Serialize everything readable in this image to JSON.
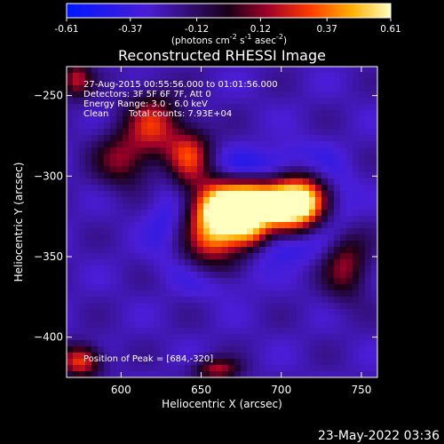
{
  "chart_data": {
    "type": "heatmap",
    "title": "Reconstructed RHESSI Image",
    "xlabel": "Heliocentric X (arcsec)",
    "ylabel": "Heliocentric Y (arcsec)",
    "xlim": [
      566,
      760
    ],
    "ylim": [
      -425,
      -232
    ],
    "xticks": [
      600,
      650,
      700,
      750
    ],
    "yticks": [
      -250,
      -300,
      -350,
      -400
    ],
    "colorbar": {
      "ticks": [
        "-0.61",
        "-0.37",
        "-0.12",
        "0.12",
        "0.37",
        "0.61"
      ],
      "min": -0.61,
      "max": 0.61,
      "label_main": "(photons cm",
      "label_exp1": "-2",
      "label_mid": " s",
      "label_exp2": "-1",
      "label_end": " asec",
      "label_exp3": "-2",
      "label_close": ")"
    },
    "annotations": {
      "time_range": "27-Aug-2015 00:55:56.000 to 01:01:56.000",
      "detectors": "Detectors: 3F 5F 6F 7F, Att 0",
      "energy": "Energy Range: 3.0 - 6.0 keV",
      "clean": "Clean",
      "counts": "Total counts: 7.93E+04",
      "peak": "Position of Peak = [684,-320]"
    },
    "sources": [
      {
        "x": 681,
        "y": -319,
        "peak": 0.61,
        "sx": 16,
        "sy": 10
      },
      {
        "x": 662,
        "y": -318,
        "peak": 0.48,
        "sx": 14,
        "sy": 11
      },
      {
        "x": 700,
        "y": -317,
        "peak": 0.5,
        "sx": 12,
        "sy": 11
      },
      {
        "x": 716,
        "y": -316,
        "peak": 0.4,
        "sx": 10,
        "sy": 12
      },
      {
        "x": 643,
        "y": -290,
        "peak": 0.3,
        "sx": 10,
        "sy": 13
      },
      {
        "x": 658,
        "y": -340,
        "peak": 0.4,
        "sx": 13,
        "sy": 11
      },
      {
        "x": 681,
        "y": -338,
        "peak": 0.25,
        "sx": 10,
        "sy": 8
      },
      {
        "x": 620,
        "y": -268,
        "peak": 0.22,
        "sx": 12,
        "sy": 14
      },
      {
        "x": 575,
        "y": -415,
        "peak": 0.3,
        "sx": 9,
        "sy": 7
      },
      {
        "x": 660,
        "y": -420,
        "peak": 0.16,
        "sx": 10,
        "sy": 5
      },
      {
        "x": 740,
        "y": -355,
        "peak": 0.12,
        "sx": 10,
        "sy": 15
      },
      {
        "x": 600,
        "y": -290,
        "peak": 0.1,
        "sx": 12,
        "sy": 12
      },
      {
        "x": 572,
        "y": -240,
        "peak": 0.18,
        "sx": 7,
        "sy": 8
      }
    ],
    "background": -0.25,
    "ring_amplitude": -0.12
  },
  "footer": {
    "timestamp": "23-May-2022 03:36"
  }
}
